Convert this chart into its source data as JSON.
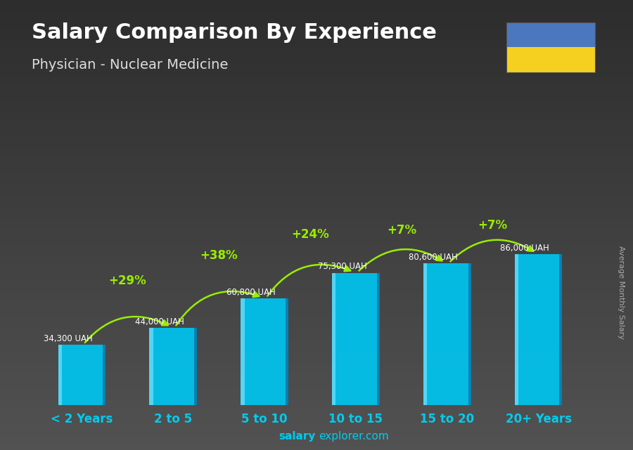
{
  "title": "Salary Comparison By Experience",
  "subtitle": "Physician - Nuclear Medicine",
  "categories": [
    "< 2 Years",
    "2 to 5",
    "5 to 10",
    "10 to 15",
    "15 to 20",
    "20+ Years"
  ],
  "values": [
    34300,
    44000,
    60800,
    75300,
    80600,
    86000
  ],
  "value_labels": [
    "34,300 UAH",
    "44,000 UAH",
    "60,800 UAH",
    "75,300 UAH",
    "80,600 UAH",
    "86,000 UAH"
  ],
  "pct_labels": [
    "+29%",
    "+38%",
    "+24%",
    "+7%",
    "+7%"
  ],
  "bar_color_main": "#00c5f0",
  "bar_color_light": "#55ddff",
  "bar_color_dark": "#0077aa",
  "bar_color_side": "#003355",
  "background_top": "#3a3a3a",
  "background_bottom": "#1a1a1a",
  "title_color": "#ffffff",
  "subtitle_color": "#dddddd",
  "xlabel_color": "#00ccee",
  "value_label_color": "#ffffff",
  "pct_color": "#99ee00",
  "arrow_color": "#99ee00",
  "watermark_bold": "salary",
  "watermark_regular": "explorer.com",
  "ylabel_rotated": "Average Monthly Salary",
  "ukraine_flag_blue": "#4b77be",
  "ukraine_flag_yellow": "#f5d020",
  "ylabel_color": "#aaaaaa",
  "bar_alpha": 0.92
}
